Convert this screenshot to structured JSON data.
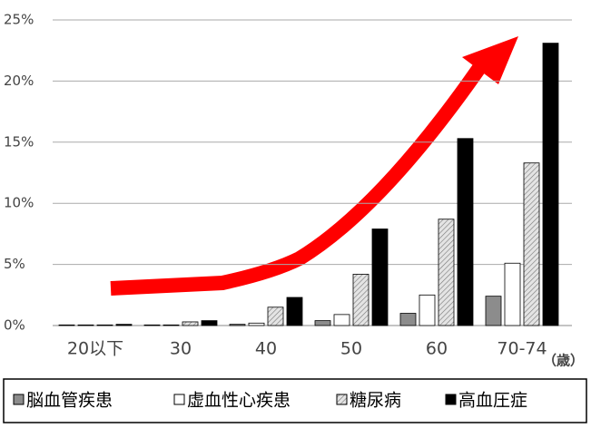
{
  "chart_data": {
    "type": "bar",
    "x_label": "（歳）",
    "categories": [
      "20以下",
      "30",
      "40",
      "50",
      "60",
      "70-74"
    ],
    "series": [
      {
        "name": "脳血管疾患",
        "color": "#8c8c8c",
        "values": [
          0.05,
          0.05,
          0.1,
          0.4,
          1.0,
          2.4
        ]
      },
      {
        "name": "虚血性心疾患",
        "color": "#ffffff",
        "values": [
          0.05,
          0.05,
          0.2,
          0.9,
          2.5,
          5.1
        ]
      },
      {
        "name": "糖尿病",
        "color": "#d8d8d8",
        "hatch": true,
        "values": [
          0.05,
          0.3,
          1.5,
          4.2,
          8.7,
          13.3
        ]
      },
      {
        "name": "高血圧症",
        "color": "#000000",
        "values": [
          0.1,
          0.4,
          2.3,
          7.9,
          15.3,
          23.1
        ]
      }
    ],
    "ylim": [
      0,
      25
    ],
    "yticks": [
      {
        "value": 0,
        "label": "0%"
      },
      {
        "value": 5,
        "label": "5%"
      },
      {
        "value": 10,
        "label": "10%"
      },
      {
        "value": 15,
        "label": "15%"
      },
      {
        "value": 20,
        "label": "20%"
      },
      {
        "value": 25,
        "label": "25%"
      }
    ],
    "grid": true
  }
}
